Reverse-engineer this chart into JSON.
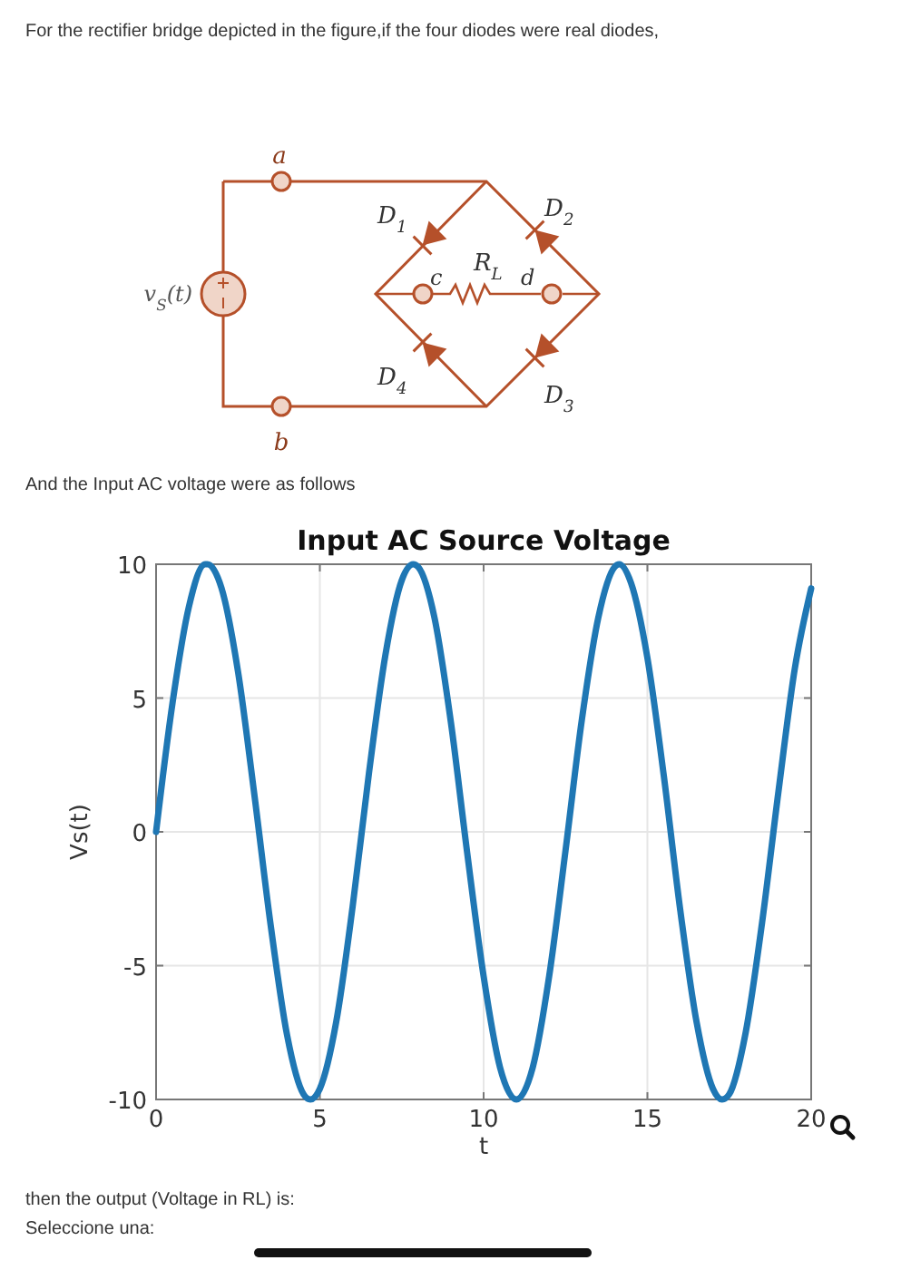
{
  "chart_data": {
    "type": "line",
    "title": "Input AC Source Voltage",
    "xlabel": "t",
    "ylabel": "Vs(t)",
    "xlim": [
      0,
      20
    ],
    "ylim": [
      -10,
      10
    ],
    "xticks": [
      0,
      5,
      10,
      15,
      20
    ],
    "yticks": [
      -10,
      -5,
      0,
      5,
      10
    ],
    "grid": true,
    "annotations": [
      "For the rectifier bridge depicted in the figure,if the four diodes were real diodes,",
      "And the Input AC voltage were as follows",
      "then the output (Voltage in RL) is:",
      "Seleccione una:",
      "a",
      "b",
      "v$_{S}$(t)",
      "D$_{1}$",
      "D$_{2}$",
      "D$_{3}$",
      "D$_{4}$",
      "R$_{L}$",
      "c",
      "d"
    ],
    "series": [
      {
        "color": "#1f77b4",
        "x": [
          0,
          0.5,
          1,
          1.5,
          1.57,
          2,
          2.5,
          3,
          3.5,
          4,
          4.5,
          4.71,
          5,
          5.5,
          6,
          6.5,
          7,
          7.5,
          7.85,
          8,
          8.5,
          9,
          9.5,
          10,
          10.5,
          11,
          11.5,
          12,
          12.5,
          13,
          13.5,
          14,
          14.14,
          14.5,
          15,
          15.5,
          16,
          16.5,
          17,
          17.28,
          17.5,
          18,
          18.5,
          19,
          19.5,
          20
        ],
        "values": [
          0,
          4.8,
          8.4,
          10,
          10,
          9.1,
          6,
          1.4,
          -3.5,
          -7.6,
          -9.8,
          -10,
          -9.6,
          -7.1,
          -2.8,
          2.2,
          6.6,
          9.4,
          10,
          9.9,
          8,
          4.1,
          -0.8,
          -5.4,
          -8.8,
          -10,
          -8.8,
          -5.4,
          -0.7,
          4.2,
          8,
          9.9,
          10,
          9.3,
          6.5,
          2.1,
          -2.9,
          -7.1,
          -9.6,
          -10,
          -9.8,
          -7.5,
          -3.4,
          1.5,
          6.1,
          9.1
        ]
      }
    ]
  }
}
